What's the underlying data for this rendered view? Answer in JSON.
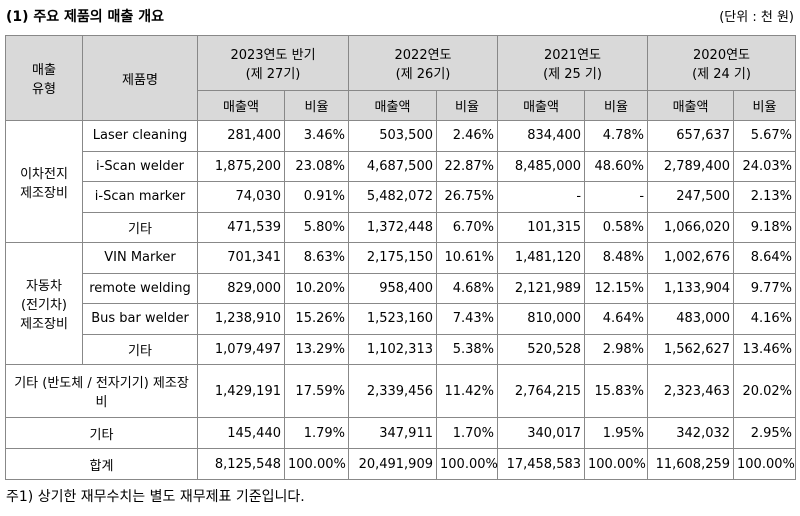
{
  "header": {
    "title": "(1) 주요 제품의 매출 개요",
    "unit": "(단위 : 천 원)"
  },
  "table": {
    "type_header": "매출\n유형",
    "product_header": "제품명",
    "periods": [
      {
        "period": "2023연도 반기",
        "term": "(제 27기)"
      },
      {
        "period": "2022연도",
        "term": "(제 26기)"
      },
      {
        "period": "2021연도",
        "term": "(제 25 기)"
      },
      {
        "period": "2020연도",
        "term": "(제 24 기)"
      }
    ],
    "sales_header": "매출액",
    "ratio_header": "비율",
    "groups": [
      {
        "label": "이차전지\n제조장비",
        "rows": [
          {
            "product": "Laser cleaning",
            "values": [
              "281,400",
              "3.46%",
              "503,500",
              "2.46%",
              "834,400",
              "4.78%",
              "657,637",
              "5.67%"
            ]
          },
          {
            "product": "i-Scan welder",
            "values": [
              "1,875,200",
              "23.08%",
              "4,687,500",
              "22.87%",
              "8,485,000",
              "48.60%",
              "2,789,400",
              "24.03%"
            ]
          },
          {
            "product": "i-Scan marker",
            "values": [
              "74,030",
              "0.91%",
              "5,482,072",
              "26.75%",
              "-",
              "-",
              "247,500",
              "2.13%"
            ]
          },
          {
            "product": "기타",
            "values": [
              "471,539",
              "5.80%",
              "1,372,448",
              "6.70%",
              "101,315",
              "0.58%",
              "1,066,020",
              "9.18%"
            ]
          }
        ]
      },
      {
        "label": "자동차\n(전기차)\n제조장비",
        "rows": [
          {
            "product": "VIN Marker",
            "values": [
              "701,341",
              "8.63%",
              "2,175,150",
              "10.61%",
              "1,481,120",
              "8.48%",
              "1,002,676",
              "8.64%"
            ]
          },
          {
            "product": "remote welding",
            "values": [
              "829,000",
              "10.20%",
              "958,400",
              "4.68%",
              "2,121,989",
              "12.15%",
              "1,133,904",
              "9.77%"
            ]
          },
          {
            "product": "Bus bar welder",
            "values": [
              "1,238,910",
              "15.26%",
              "1,523,160",
              "7.43%",
              "810,000",
              "4.64%",
              "483,000",
              "4.16%"
            ]
          },
          {
            "product": "기타",
            "values": [
              "1,079,497",
              "13.29%",
              "1,102,313",
              "5.38%",
              "520,528",
              "2.98%",
              "1,562,627",
              "13.46%"
            ]
          }
        ]
      }
    ],
    "summary_rows": [
      {
        "label": "기타 (반도체 / 전자기기) 제조장비",
        "values": [
          "1,429,191",
          "17.59%",
          "2,339,456",
          "11.42%",
          "2,764,215",
          "15.83%",
          "2,323,463",
          "20.02%"
        ]
      },
      {
        "label": "기타",
        "values": [
          "145,440",
          "1.79%",
          "347,911",
          "1.70%",
          "340,017",
          "1.95%",
          "342,032",
          "2.95%"
        ]
      },
      {
        "label": "합계",
        "values": [
          "8,125,548",
          "100.00%",
          "20,491,909",
          "100.00%",
          "17,458,583",
          "100.00%",
          "11,608,259",
          "100.00%"
        ]
      }
    ]
  },
  "footnote": "주1) 상기한 재무수치는 별도 재무제표 기준입니다."
}
